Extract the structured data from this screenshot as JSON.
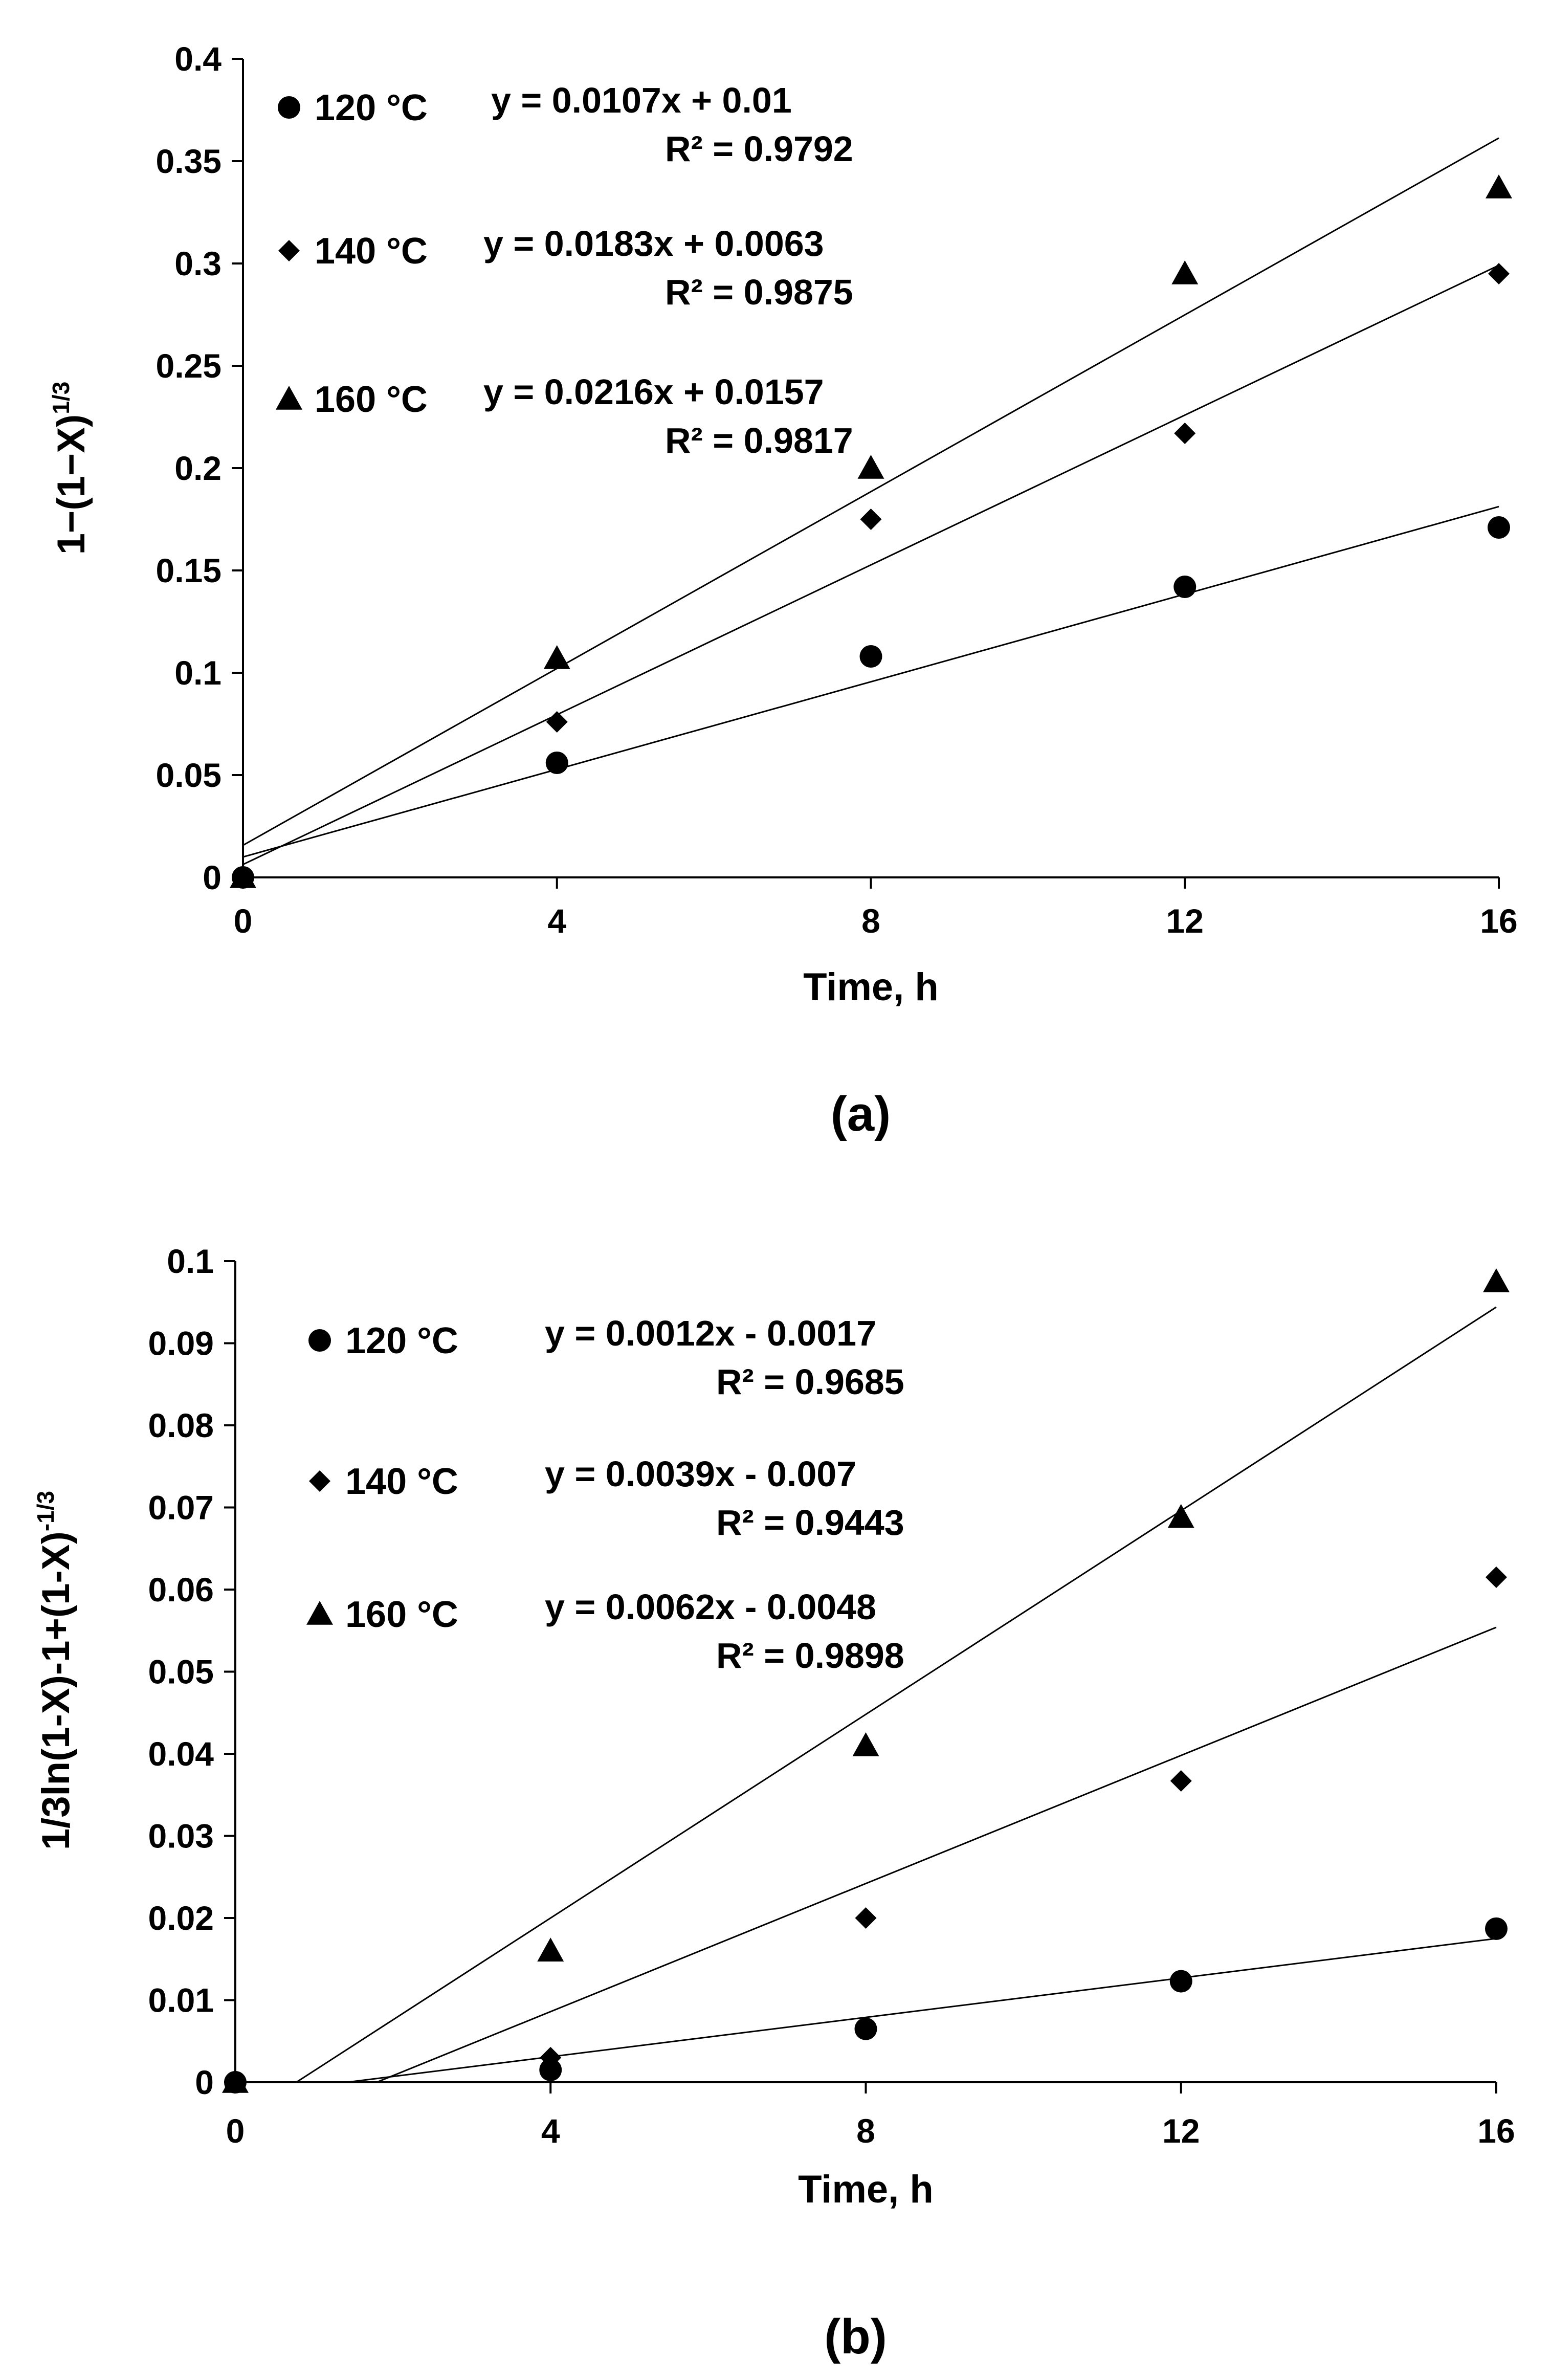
{
  "chart_data": [
    {
      "type": "scatter",
      "panel_label": "(a)",
      "xlabel": "Time, h",
      "ylabel": "1−(1−X)",
      "ylabel_sup": "1/3",
      "xlim": [
        0,
        16
      ],
      "ylim": [
        0,
        0.4
      ],
      "xticks": [
        0,
        4,
        8,
        12,
        16
      ],
      "xtick_labels": [
        "0",
        "4",
        "8",
        "12",
        "16"
      ],
      "yticks": [
        0,
        0.05,
        0.1,
        0.15,
        0.2,
        0.25,
        0.3,
        0.35,
        0.4
      ],
      "ytick_labels": [
        "0",
        "0.05",
        "0.1",
        "0.15",
        "0.2",
        "0.25",
        "0.3",
        "0.35",
        "0.4"
      ],
      "series": [
        {
          "name": "120 °C",
          "marker": "circle",
          "x": [
            0,
            4,
            8,
            12,
            16
          ],
          "y": [
            0,
            0.056,
            0.108,
            0.142,
            0.171
          ],
          "fit": {
            "slope": 0.0107,
            "intercept": 0.01
          },
          "equation": "y = 0.0107x  + 0.01",
          "r2": "R² = 0.9792"
        },
        {
          "name": "140 °C",
          "marker": "diamond",
          "x": [
            0,
            4,
            8,
            12,
            16
          ],
          "y": [
            0,
            0.076,
            0.175,
            0.217,
            0.295
          ],
          "fit": {
            "slope": 0.0183,
            "intercept": 0.0063
          },
          "equation": "y = 0.0183x  + 0.0063",
          "r2": "R² = 0.9875"
        },
        {
          "name": "160 °C",
          "marker": "triangle",
          "x": [
            0,
            4,
            8,
            12,
            16
          ],
          "y": [
            0,
            0.107,
            0.2,
            0.295,
            0.337
          ],
          "fit": {
            "slope": 0.0216,
            "intercept": 0.0157
          },
          "equation": "y = 0.0216x  + 0.0157",
          "r2": "R² = 0.9817"
        }
      ]
    },
    {
      "type": "scatter",
      "panel_label": "(b)",
      "xlabel": "Time, h",
      "ylabel": "1/3ln(1-X)-1+(1-X)",
      "ylabel_sup": "-1/3",
      "xlim": [
        0,
        16
      ],
      "ylim": [
        0,
        0.1
      ],
      "xticks": [
        0,
        4,
        8,
        12,
        16
      ],
      "xtick_labels": [
        "0",
        "4",
        "8",
        "12",
        "16"
      ],
      "yticks": [
        0,
        0.01,
        0.02,
        0.03,
        0.04,
        0.05,
        0.06,
        0.07,
        0.08,
        0.09,
        0.1
      ],
      "ytick_labels": [
        "0",
        "0.01",
        "0.02",
        "0.03",
        "0.04",
        "0.05",
        "0.06",
        "0.07",
        "0.08",
        "0.09",
        "0.1"
      ],
      "series": [
        {
          "name": "120 °C",
          "marker": "circle",
          "x": [
            0,
            4,
            8,
            12,
            16
          ],
          "y": [
            0,
            0.0015,
            0.0065,
            0.0123,
            0.0187
          ],
          "fit": {
            "slope": 0.0012,
            "intercept": -0.0017
          },
          "equation": "y = 0.0012x  - 0.0017",
          "r2": "R² = 0.9685"
        },
        {
          "name": "140 °C",
          "marker": "diamond",
          "x": [
            0,
            4,
            8,
            12,
            16
          ],
          "y": [
            0,
            0.003,
            0.02,
            0.0367,
            0.0615
          ],
          "fit": {
            "slope": 0.0039,
            "intercept": -0.007
          },
          "equation": "y = 0.0039x  - 0.007",
          "r2": "R² = 0.9443"
        },
        {
          "name": "160 °C",
          "marker": "triangle",
          "x": [
            0,
            4,
            8,
            12,
            16
          ],
          "y": [
            0,
            0.016,
            0.041,
            0.0688,
            0.0975
          ],
          "fit": {
            "slope": 0.0062,
            "intercept": -0.0048
          },
          "equation": "y = 0.0062x  - 0.0048",
          "r2": "R² = 0.9898"
        }
      ]
    }
  ]
}
